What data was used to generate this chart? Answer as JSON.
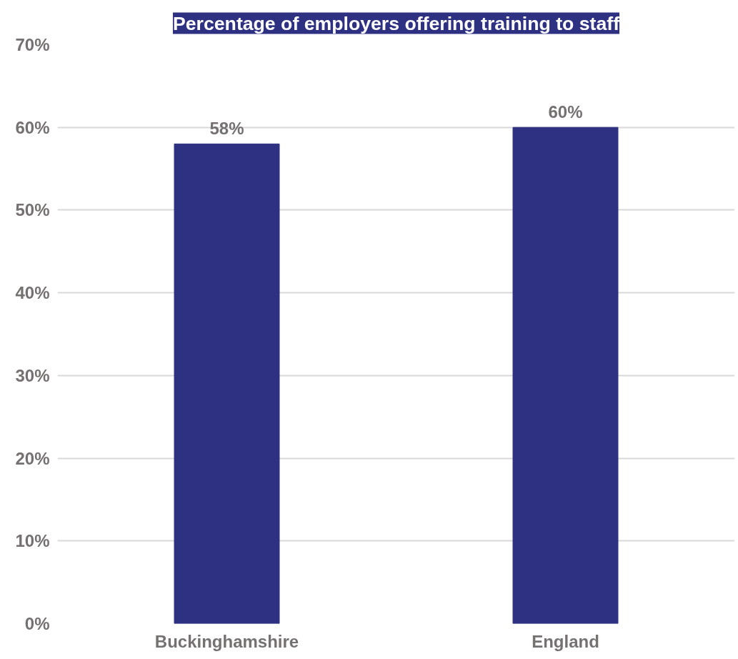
{
  "chart_data": {
    "type": "bar",
    "title": "Percentage of employers offering training to staff",
    "categories": [
      "Buckinghamshire",
      "England"
    ],
    "values": [
      58,
      60
    ],
    "value_labels": [
      "58%",
      "60%"
    ],
    "color": "#2e3082",
    "ylim": [
      0,
      70
    ],
    "yticks": [
      {
        "value": 0,
        "label": "0%"
      },
      {
        "value": 10,
        "label": "10%"
      },
      {
        "value": 20,
        "label": "20%"
      },
      {
        "value": 30,
        "label": "30%"
      },
      {
        "value": 40,
        "label": "40%"
      },
      {
        "value": 50,
        "label": "50%"
      },
      {
        "value": 60,
        "label": "60%"
      },
      {
        "value": 70,
        "label": "70%"
      }
    ],
    "grid": "y"
  }
}
